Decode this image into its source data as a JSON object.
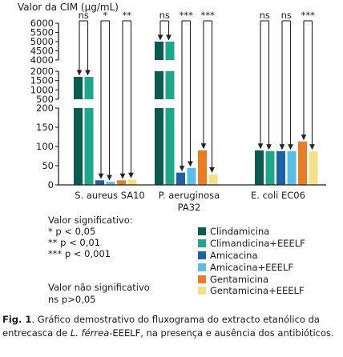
{
  "chart_data": {
    "type": "bar",
    "title": "",
    "ylabel": "Valor da CIM (µg/mL)",
    "xlabel": "",
    "y_axis": {
      "broken": true,
      "lower_segment": {
        "range": [
          0,
          200
        ],
        "ticks": [
          0,
          50,
          100,
          150,
          200
        ]
      },
      "middle_segment": {
        "range": [
          500,
          2000
        ],
        "ticks": [
          500,
          1000,
          1500,
          2000
        ]
      },
      "upper_segment": {
        "range": [
          4000,
          6000
        ],
        "ticks": [
          4000,
          4500,
          5000,
          5500,
          6000
        ]
      }
    },
    "categories": [
      "S. aureus SA10",
      "P. aeruginosa PA32",
      "E. coli EC06"
    ],
    "series": [
      {
        "name": "Clindamicina",
        "color": "#0b5c50",
        "values": [
          1700,
          5000,
          90
        ]
      },
      {
        "name": "Climandicina+EEELF",
        "color": "#1ea78a",
        "values": [
          1700,
          5000,
          88
        ]
      },
      {
        "name": "Amicacina",
        "color": "#1a62a4",
        "values": [
          12,
          32,
          88
        ]
      },
      {
        "name": "Amicacina+EEELF",
        "color": "#59bde6",
        "values": [
          8,
          44,
          88
        ]
      },
      {
        "name": "Gentamicina",
        "color": "#ea7c26",
        "values": [
          12,
          90,
          113
        ]
      },
      {
        "name": "Gentamicina+EEELF",
        "color": "#f5e087",
        "values": [
          14,
          28,
          88
        ]
      }
    ],
    "significance": [
      [
        "ns",
        "*",
        "**"
      ],
      [
        "ns",
        "***",
        "***"
      ],
      [
        "ns",
        "ns",
        "***"
      ]
    ],
    "grid": false
  },
  "notes": {
    "title": "Valor significativo:",
    "lines": [
      "* p < 0,05",
      "** p < 0,01",
      "*** p < 0,001"
    ],
    "ns_title": "Valor não significativo",
    "ns_line": "ns p>0,05"
  },
  "caption": {
    "label": "Fig. 1",
    "text_a": ". Gráfico demostrativo do fluxograma do extracto etanólico da entrecasca de ",
    "species": "L. férrea",
    "text_b": "-EEELF, na presença e ausência dos antibióticos."
  }
}
